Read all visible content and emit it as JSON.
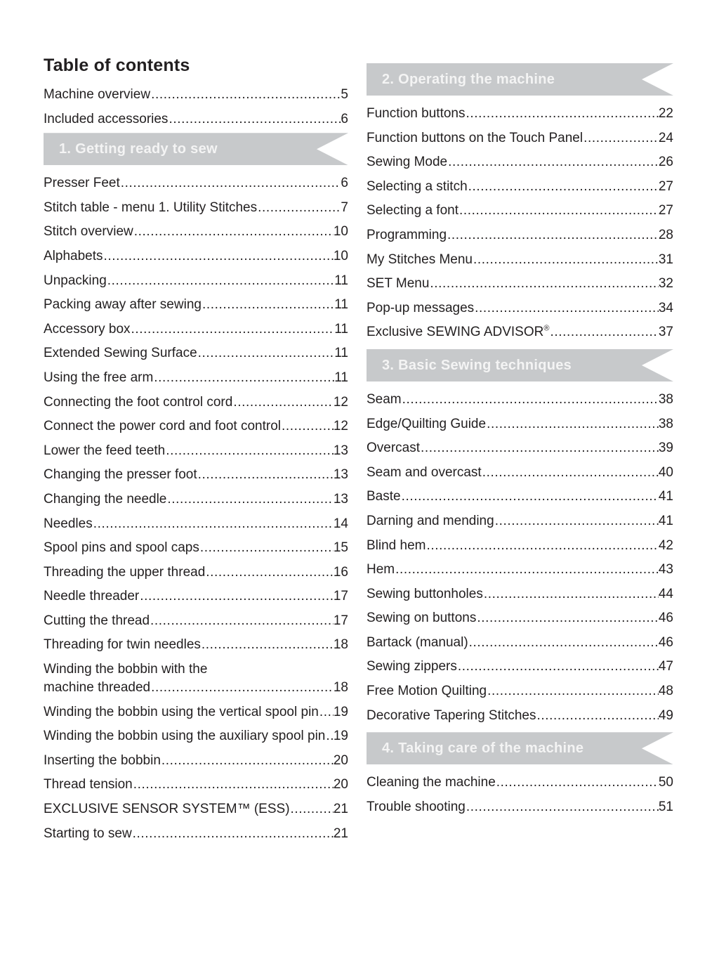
{
  "page": {
    "title": "Table of contents",
    "text_color": "#221f20",
    "banner_color": "#c7c9cb",
    "banner_text_color": "#f4f4f4",
    "background_color": "#ffffff"
  },
  "left_column": {
    "intro_entries": [
      {
        "label": "Machine overview",
        "page": "5"
      },
      {
        "label": "Included accessories",
        "page": "6"
      }
    ],
    "sections": [
      {
        "banner": "1. Getting ready to sew",
        "entries": [
          {
            "label": "Presser Feet",
            "page": "6"
          },
          {
            "label": "Stitch table - menu 1. Utility Stitches",
            "page": "7"
          },
          {
            "label": "Stitch overview",
            "page": "10"
          },
          {
            "label": "Alphabets",
            "page": "10"
          },
          {
            "label": "Unpacking",
            "page": "11"
          },
          {
            "label": "Packing away after sewing",
            "page": "11"
          },
          {
            "label": "Accessory box",
            "page": "11"
          },
          {
            "label": "Extended Sewing Surface",
            "page": "11"
          },
          {
            "label": "Using the free arm",
            "page": "11"
          },
          {
            "label": "Connecting the foot control cord",
            "page": "12"
          },
          {
            "label": "Connect the power cord and foot control",
            "page": "12"
          },
          {
            "label": "Lower the feed teeth",
            "page": "13"
          },
          {
            "label": "Changing the presser foot",
            "page": "13"
          },
          {
            "label": "Changing the needle",
            "page": "13"
          },
          {
            "label": "Needles",
            "page": "14"
          },
          {
            "label": "Spool pins and spool caps",
            "page": "15"
          },
          {
            "label": "Threading the upper thread",
            "page": "16"
          },
          {
            "label": "Needle threader",
            "page": "17"
          },
          {
            "label": "Cutting the thread",
            "page": "17"
          },
          {
            "label": "Threading for twin needles",
            "page": "18"
          },
          {
            "label": "Winding the bobbin with the",
            "label2": "machine threaded",
            "page": "18"
          },
          {
            "label": "Winding the bobbin using the vertical spool pin",
            "page": "19"
          },
          {
            "label": "Winding the bobbin using the auxiliary spool pin",
            "page": "19"
          },
          {
            "label": "Inserting the bobbin",
            "page": "20"
          },
          {
            "label": "Thread tension",
            "page": "20"
          },
          {
            "label": "EXCLUSIVE SENSOR SYSTEM™ (ESS)",
            "page": "21"
          },
          {
            "label": "Starting to sew",
            "page": "21"
          }
        ]
      }
    ]
  },
  "right_column": {
    "sections": [
      {
        "banner": "2. Operating the machine",
        "entries": [
          {
            "label": "Function buttons",
            "page": "22"
          },
          {
            "label": "Function buttons on the Touch Panel",
            "page": "24"
          },
          {
            "label": "Sewing Mode",
            "page": "26"
          },
          {
            "label": "Selecting a stitch",
            "page": "27"
          },
          {
            "label": "Selecting a font",
            "page": "27"
          },
          {
            "label": "Programming",
            "page": "28"
          },
          {
            "label": "My Stitches Menu",
            "page": "31"
          },
          {
            "label": "SET Menu",
            "page": "32"
          },
          {
            "label": "Pop-up messages",
            "page": "34"
          },
          {
            "label": "Exclusive SEWING ADVISOR®",
            "page": "37"
          }
        ]
      },
      {
        "banner": "3. Basic Sewing techniques",
        "entries": [
          {
            "label": "Seam",
            "page": "38"
          },
          {
            "label": "Edge/Quilting Guide",
            "page": "38"
          },
          {
            "label": "Overcast",
            "page": "39"
          },
          {
            "label": "Seam and overcast",
            "page": "40"
          },
          {
            "label": "Baste",
            "page": "41"
          },
          {
            "label": "Darning and mending",
            "page": "41"
          },
          {
            "label": "Blind hem",
            "page": "42"
          },
          {
            "label": "Hem",
            "page": "43"
          },
          {
            "label": "Sewing buttonholes",
            "page": "44"
          },
          {
            "label": "Sewing on buttons",
            "page": "46"
          },
          {
            "label": "Bartack (manual)",
            "page": "46"
          },
          {
            "label": "Sewing zippers",
            "page": "47"
          },
          {
            "label": "Free Motion Quilting",
            "page": "48"
          },
          {
            "label": "Decorative Tapering Stitches",
            "page": "49"
          }
        ]
      },
      {
        "banner": "4. Taking care of the machine",
        "entries": [
          {
            "label": "Cleaning the machine",
            "page": "50"
          },
          {
            "label": "Trouble shooting",
            "page": "51"
          }
        ]
      }
    ]
  }
}
